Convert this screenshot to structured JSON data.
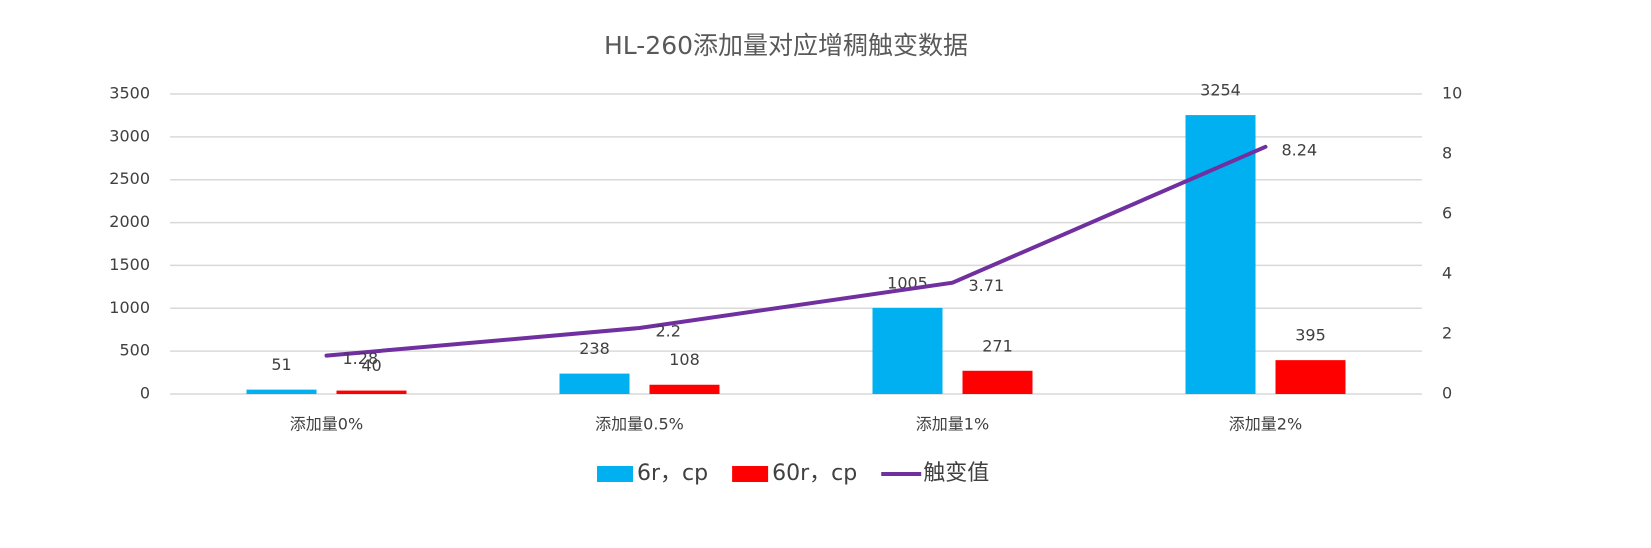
{
  "chart_data": {
    "type": "bar",
    "title": "HL-260添加量对应增稠触变数据",
    "categories": [
      "添加量0%",
      "添加量0.5%",
      "添加量1%",
      "添加量2%"
    ],
    "series": [
      {
        "name": "6r，cp",
        "color": "#00b0f0",
        "type": "bar",
        "values": [
          51,
          238,
          1005,
          3254
        ]
      },
      {
        "name": "60r，cp",
        "color": "#ff0000",
        "type": "bar",
        "values": [
          40,
          108,
          271,
          395
        ]
      },
      {
        "name": "触变值",
        "color": "#7030a0",
        "type": "line",
        "axis": "y2",
        "values": [
          1.28,
          2.2,
          3.71,
          8.24
        ]
      }
    ],
    "ylim": [
      0,
      3500
    ],
    "yticks": [
      0,
      500,
      1000,
      1500,
      2000,
      2500,
      3000,
      3500
    ],
    "y2lim": [
      0,
      10
    ],
    "y2ticks": [
      0,
      2,
      4,
      6,
      8,
      10
    ],
    "grid": true,
    "legend": "bottom"
  }
}
